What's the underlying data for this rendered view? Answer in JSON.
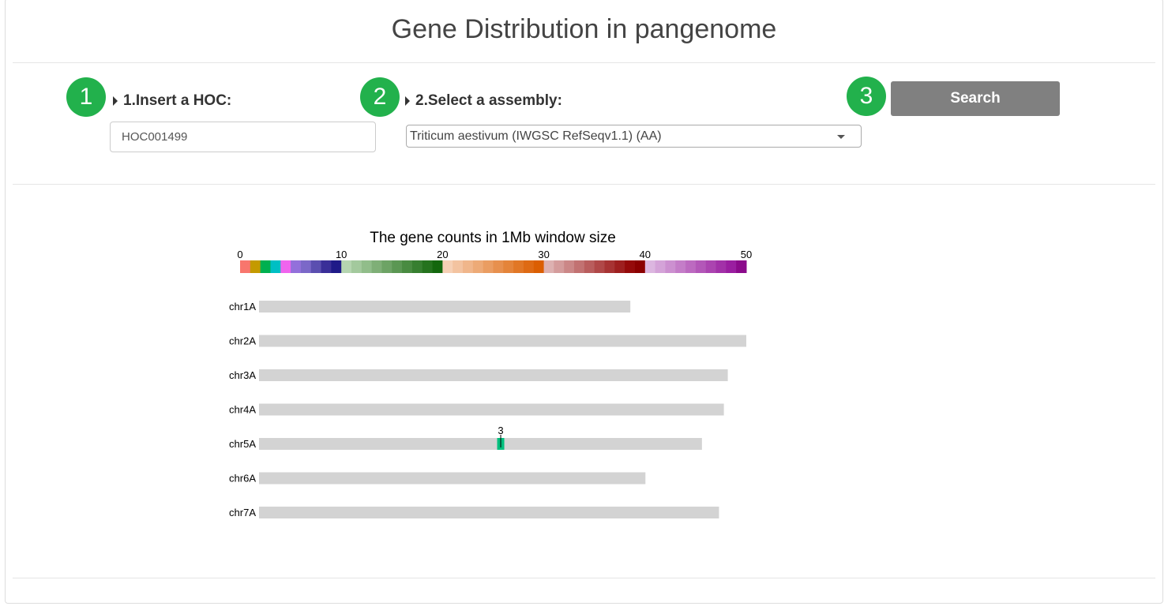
{
  "header": {
    "title": "Gene Distribution in pangenome"
  },
  "steps": [
    {
      "number": "1",
      "label": "1.Insert a HOC:"
    },
    {
      "number": "2",
      "label": "2.Select a assembly:"
    },
    {
      "number": "3"
    }
  ],
  "hoc_input": {
    "value": "HOC001499"
  },
  "assembly_select": {
    "selected": "Triticum aestivum (IWGSC RefSeqv1.1) (AA)"
  },
  "search_button": {
    "label": "Search"
  },
  "colors": {
    "badge": "#22b14c",
    "button": "#808080",
    "chromosome_bar": "#d3d3d3"
  },
  "chart_data": {
    "type": "heatmap",
    "title": "The gene counts in 1Mb window size",
    "colorbar": {
      "ticks": [
        0,
        10,
        20,
        30,
        40,
        50
      ],
      "colors": [
        "#f8766d",
        "#c49a00",
        "#00b050",
        "#00bfc4",
        "#f064ee",
        "#9370db",
        "#7b68c8",
        "#5b4fb0",
        "#3a2f98",
        "#1f1a88",
        "#b5d5b0",
        "#a3c99d",
        "#91bd8a",
        "#7faf77",
        "#6da365",
        "#5b9753",
        "#498b41",
        "#377f30",
        "#25731e",
        "#13670d",
        "#f6d0b5",
        "#f3c3a0",
        "#f0b68b",
        "#edaa77",
        "#ea9d62",
        "#e7904e",
        "#e4843a",
        "#e17726",
        "#de6a14",
        "#db5e02",
        "#ddb1b1",
        "#d49c9c",
        "#cb8787",
        "#c27272",
        "#b95d5d",
        "#b04848",
        "#a73333",
        "#9e1f1f",
        "#950a0a",
        "#8b0000",
        "#dcb6e0",
        "#d4a3d8",
        "#cc90d0",
        "#c47dc8",
        "#bc6ac0",
        "#b357b8",
        "#ab44b0",
        "#a231a8",
        "#9a1ea0",
        "#8b0a8b"
      ]
    },
    "chromosomes": [
      {
        "name": "chr1A",
        "length_frac": 0.762
      },
      {
        "name": "chr2A",
        "length_frac": 1.0
      },
      {
        "name": "chr3A",
        "length_frac": 0.962
      },
      {
        "name": "chr4A",
        "length_frac": 0.954
      },
      {
        "name": "chr5A",
        "length_frac": 0.909
      },
      {
        "name": "chr6A",
        "length_frac": 0.793
      },
      {
        "name": "chr7A",
        "length_frac": 0.944
      }
    ],
    "hits": [
      {
        "chromosome": "chr5A",
        "position_frac": 0.496,
        "count": "3",
        "color": "#00bf7d"
      }
    ]
  }
}
